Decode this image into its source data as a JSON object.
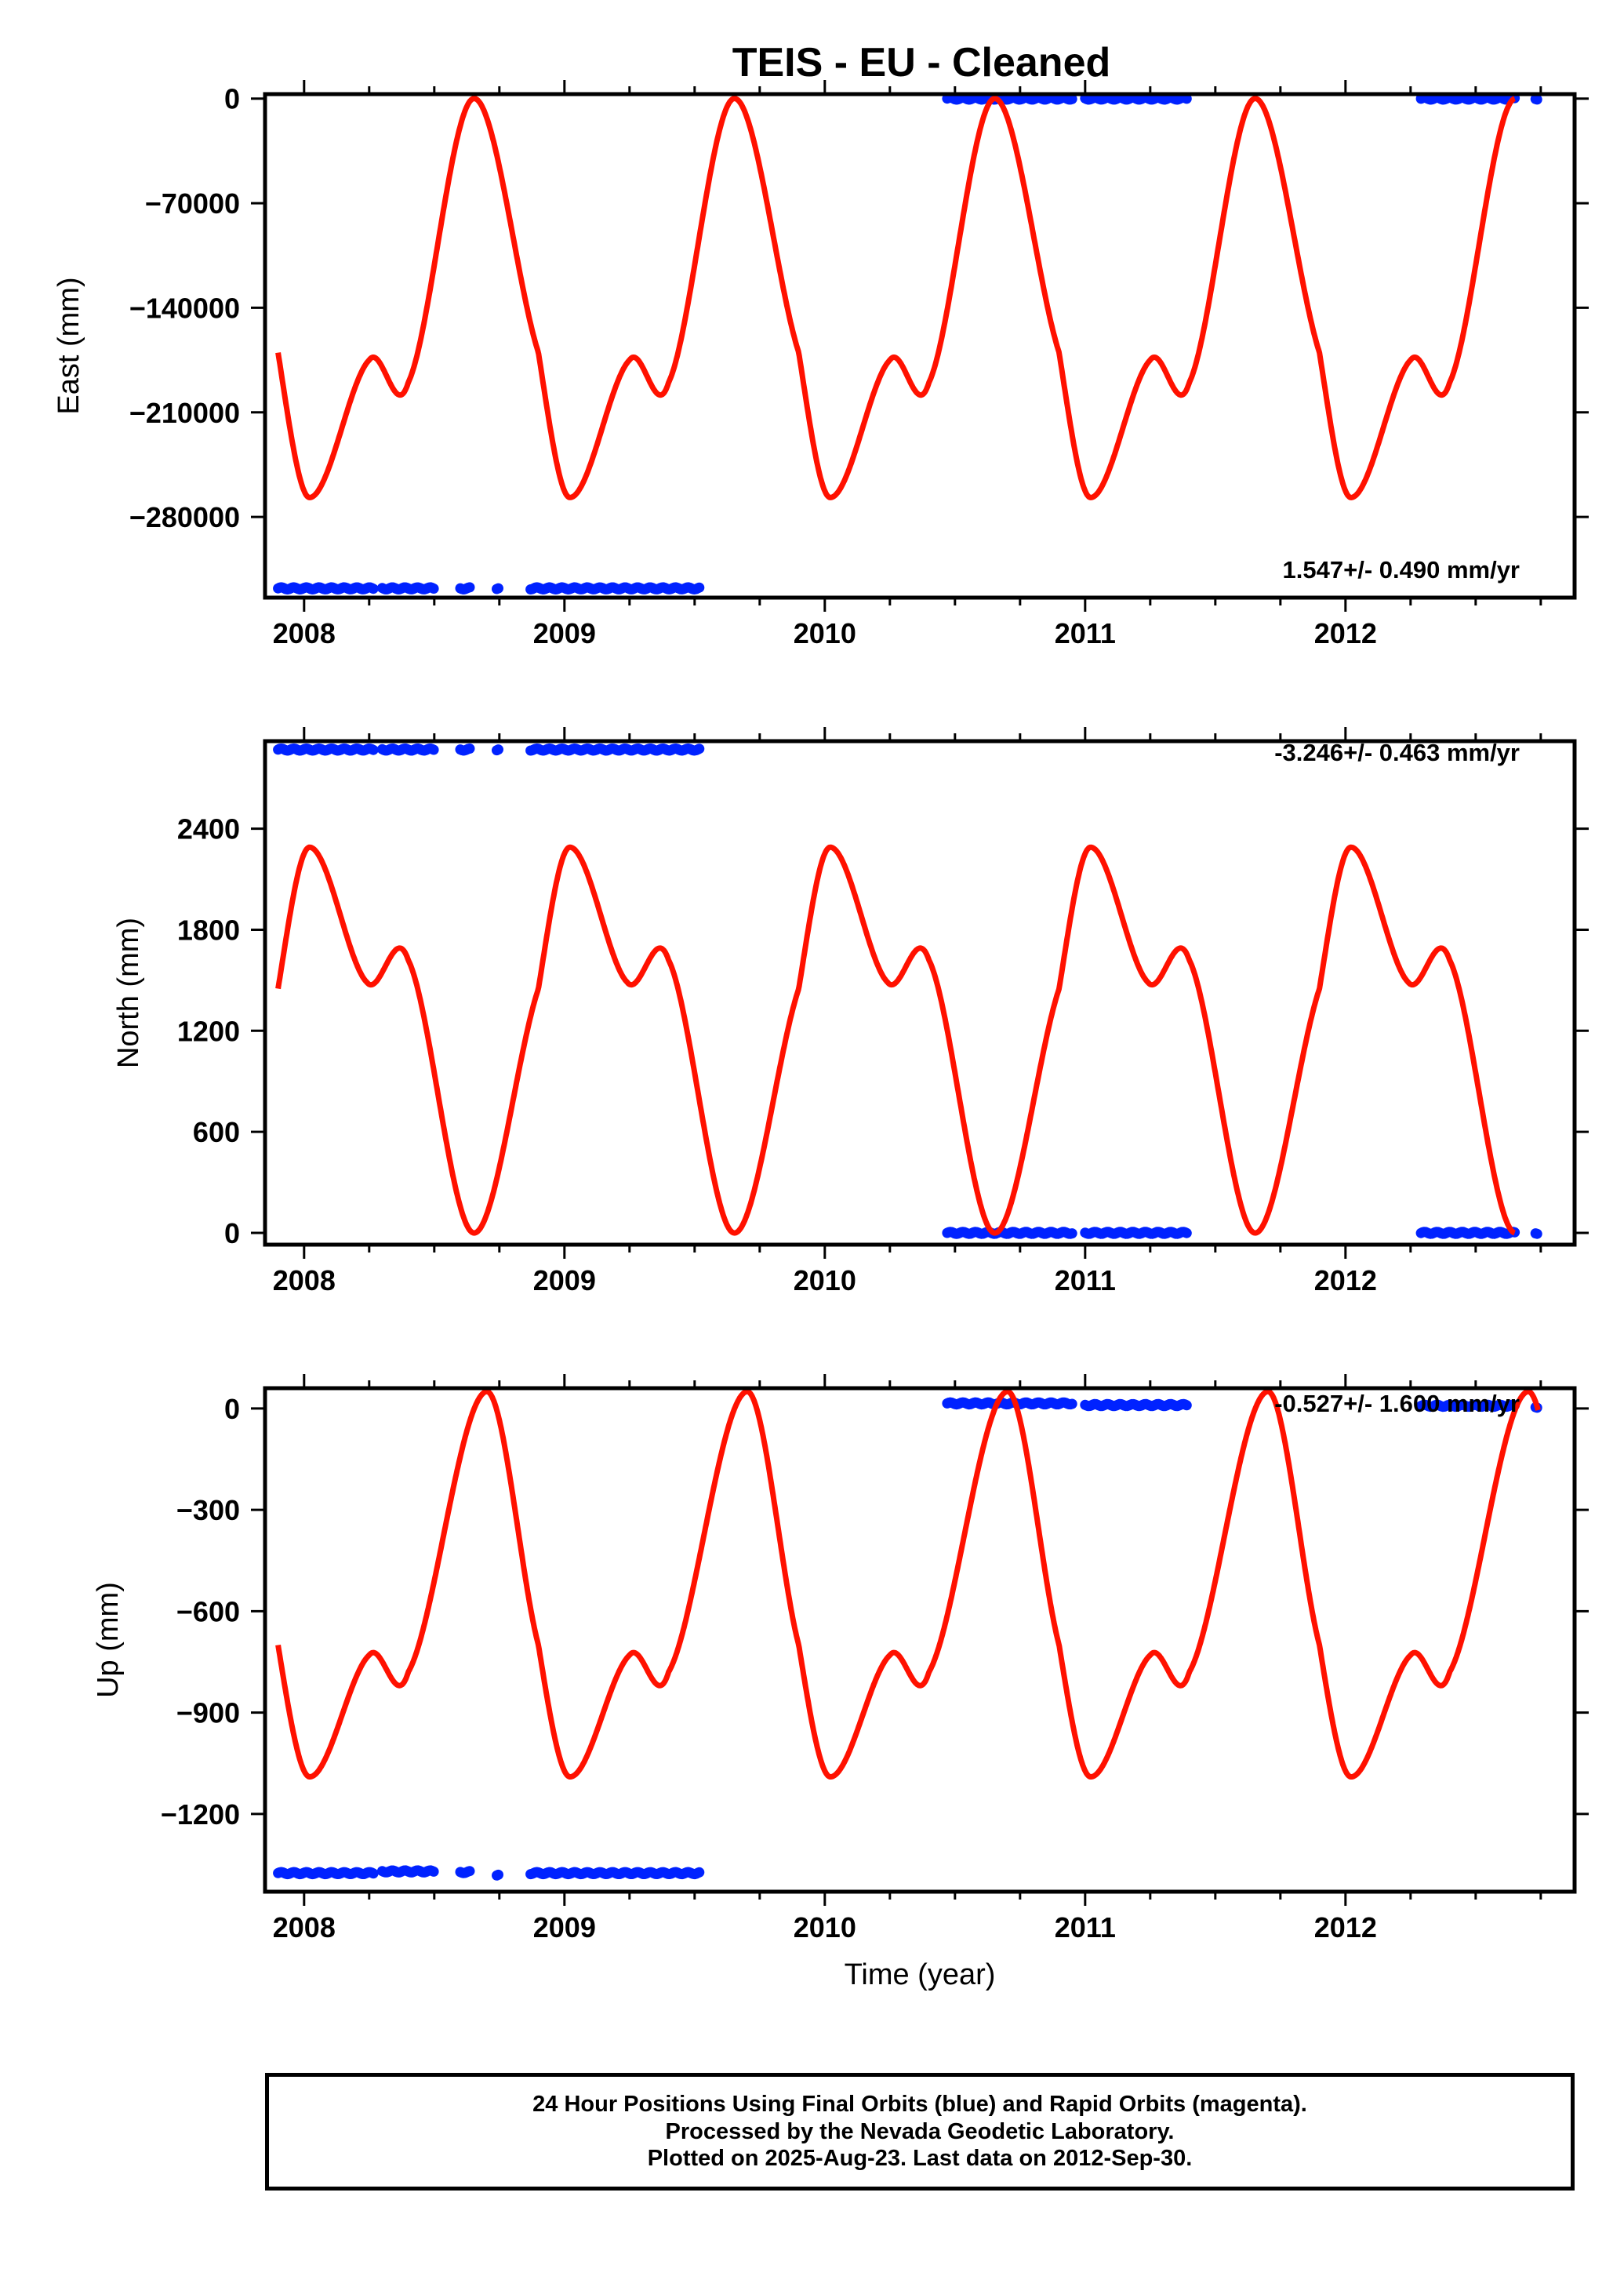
{
  "title": "TEIS  - EU - Cleaned",
  "caption": {
    "line1": "24 Hour Positions Using Final Orbits (blue) and Rapid Orbits (magenta).",
    "line2": "Processed by the Nevada Geodetic Laboratory.",
    "line3": "Plotted on 2025-Aug-23. Last data on 2012-Sep-30."
  },
  "colors": {
    "observations": "#0022ff",
    "model": "#ff1100"
  },
  "chart_data": [
    {
      "type": "scatter",
      "ylabel": "East (mm)",
      "xlabel": "",
      "xlim": [
        2007.85,
        2012.88
      ],
      "ylim": [
        -334000,
        3000
      ],
      "x_ticks": [
        "2008",
        "2009",
        "2010",
        "2011",
        "2012"
      ],
      "y_ticks": [
        0,
        -70000,
        -140000,
        -210000,
        -280000
      ],
      "annotation": "1.547+/- 0.490 mm/yr",
      "series": [
        {
          "role": "observations",
          "segments": [
            {
              "x": [
                2007.9,
                2008.27
              ],
              "y": -327800
            },
            {
              "x": [
                2008.3,
                2008.5
              ],
              "y": -327800
            },
            {
              "x": [
                2008.6,
                2008.64
              ],
              "y": -327800
            },
            {
              "x": [
                2008.74,
                2008.75
              ],
              "y": -327800
            },
            {
              "x": [
                2008.87,
                2009.52
              ],
              "y": -327800
            },
            {
              "x": [
                2010.47,
                2010.95
              ],
              "y": 0
            },
            {
              "x": [
                2011.0,
                2011.39
              ],
              "y": 0
            },
            {
              "x": [
                2012.29,
                2012.65
              ],
              "y": 0
            },
            {
              "x": [
                2012.73,
                2012.74
              ],
              "y": 0
            }
          ]
        },
        {
          "role": "model",
          "start": 2007.9,
          "end": 2012.65,
          "period_shape": [
            [
              0,
              -170000
            ],
            [
              0.12,
              -267000
            ],
            [
              0.35,
              -175000
            ],
            [
              0.5,
              -190000
            ],
            [
              0.75,
              0
            ]
          ],
          "clip_top": 0
        }
      ]
    },
    {
      "type": "scatter",
      "ylabel": "North (mm)",
      "xlabel": "",
      "xlim": [
        2007.85,
        2012.88
      ],
      "ylim": [
        -70,
        2920
      ],
      "x_ticks": [
        "2008",
        "2009",
        "2010",
        "2011",
        "2012"
      ],
      "y_ticks": [
        2400,
        1800,
        1200,
        600,
        0
      ],
      "annotation": "-3.246+/- 0.463 mm/yr",
      "series": [
        {
          "role": "observations",
          "segments": [
            {
              "x": [
                2007.9,
                2008.27
              ],
              "y": 2870
            },
            {
              "x": [
                2008.3,
                2008.5
              ],
              "y": 2870
            },
            {
              "x": [
                2008.6,
                2008.64
              ],
              "y": 2870
            },
            {
              "x": [
                2008.74,
                2008.75
              ],
              "y": 2870
            },
            {
              "x": [
                2008.87,
                2009.52
              ],
              "y": 2870
            },
            {
              "x": [
                2010.47,
                2010.95
              ],
              "y": 0
            },
            {
              "x": [
                2011.0,
                2011.39
              ],
              "y": 0
            },
            {
              "x": [
                2012.29,
                2012.65
              ],
              "y": 0
            },
            {
              "x": [
                2012.73,
                2012.74
              ],
              "y": 0
            }
          ]
        },
        {
          "role": "model",
          "start": 2007.9,
          "end": 2012.65,
          "period_shape": [
            [
              0,
              1450
            ],
            [
              0.12,
              2290
            ],
            [
              0.34,
              1490
            ],
            [
              0.5,
              1620
            ],
            [
              0.75,
              0
            ]
          ],
          "clip_bottom": 0
        }
      ]
    },
    {
      "type": "scatter",
      "ylabel": "Up (mm)",
      "xlabel": "Time (year)",
      "xlim": [
        2007.85,
        2012.88
      ],
      "ylim": [
        -1430,
        60
      ],
      "x_ticks": [
        "2008",
        "2009",
        "2010",
        "2011",
        "2012"
      ],
      "y_ticks": [
        0,
        -300,
        -600,
        -900,
        -1200
      ],
      "annotation": "-0.527+/- 1.600 mm/yr",
      "series": [
        {
          "role": "observations",
          "segments": [
            {
              "x": [
                2007.9,
                2008.27
              ],
              "y": -1375
            },
            {
              "x": [
                2008.3,
                2008.5
              ],
              "y": -1370
            },
            {
              "x": [
                2008.6,
                2008.64
              ],
              "y": -1372
            },
            {
              "x": [
                2008.74,
                2008.75
              ],
              "y": -1380
            },
            {
              "x": [
                2008.87,
                2009.52
              ],
              "y": -1375
            },
            {
              "x": [
                2010.47,
                2010.95
              ],
              "y": 15
            },
            {
              "x": [
                2011.0,
                2011.39
              ],
              "y": 10
            },
            {
              "x": [
                2012.29,
                2012.65
              ],
              "y": 8
            },
            {
              "x": [
                2012.73,
                2012.74
              ],
              "y": 5
            }
          ]
        },
        {
          "role": "model",
          "start": 2007.9,
          "end": 2012.74,
          "period_shape": [
            [
              0,
              -700
            ],
            [
              0.12,
              -1090
            ],
            [
              0.35,
              -730
            ],
            [
              0.5,
              -780
            ],
            [
              0.8,
              50
            ]
          ]
        }
      ]
    }
  ]
}
